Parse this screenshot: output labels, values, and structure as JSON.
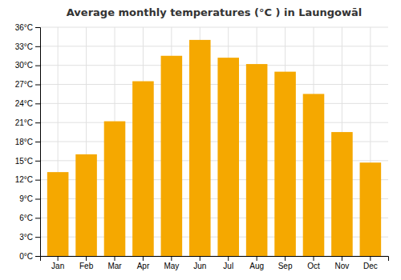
{
  "chart_data": {
    "type": "bar",
    "title": "Average monthly temperatures (°C ) in Laungowāl",
    "categories": [
      "Jan",
      "Feb",
      "Mar",
      "Apr",
      "May",
      "Jun",
      "Jul",
      "Aug",
      "Sep",
      "Oct",
      "Nov",
      "Dec"
    ],
    "values": [
      13.2,
      16.0,
      21.2,
      27.5,
      31.5,
      34.0,
      31.2,
      30.2,
      29.0,
      25.5,
      19.5,
      14.7
    ],
    "color": "#F5A800",
    "ylim": [
      0,
      36
    ],
    "yticks": [
      {
        "value": 0,
        "label": "0°C"
      },
      {
        "value": 3,
        "label": "3°C"
      },
      {
        "value": 6,
        "label": "6°C"
      },
      {
        "value": 9,
        "label": "9°C"
      },
      {
        "value": 12,
        "label": "12°C"
      },
      {
        "value": 15,
        "label": "15°C"
      },
      {
        "value": 18,
        "label": "18°C"
      },
      {
        "value": 21,
        "label": "21°C"
      },
      {
        "value": 24,
        "label": "24°C"
      },
      {
        "value": 27,
        "label": "27°C"
      },
      {
        "value": 30,
        "label": "30°C"
      },
      {
        "value": 33,
        "label": "33°C"
      },
      {
        "value": 36,
        "label": "36°C"
      }
    ],
    "grid": true
  }
}
